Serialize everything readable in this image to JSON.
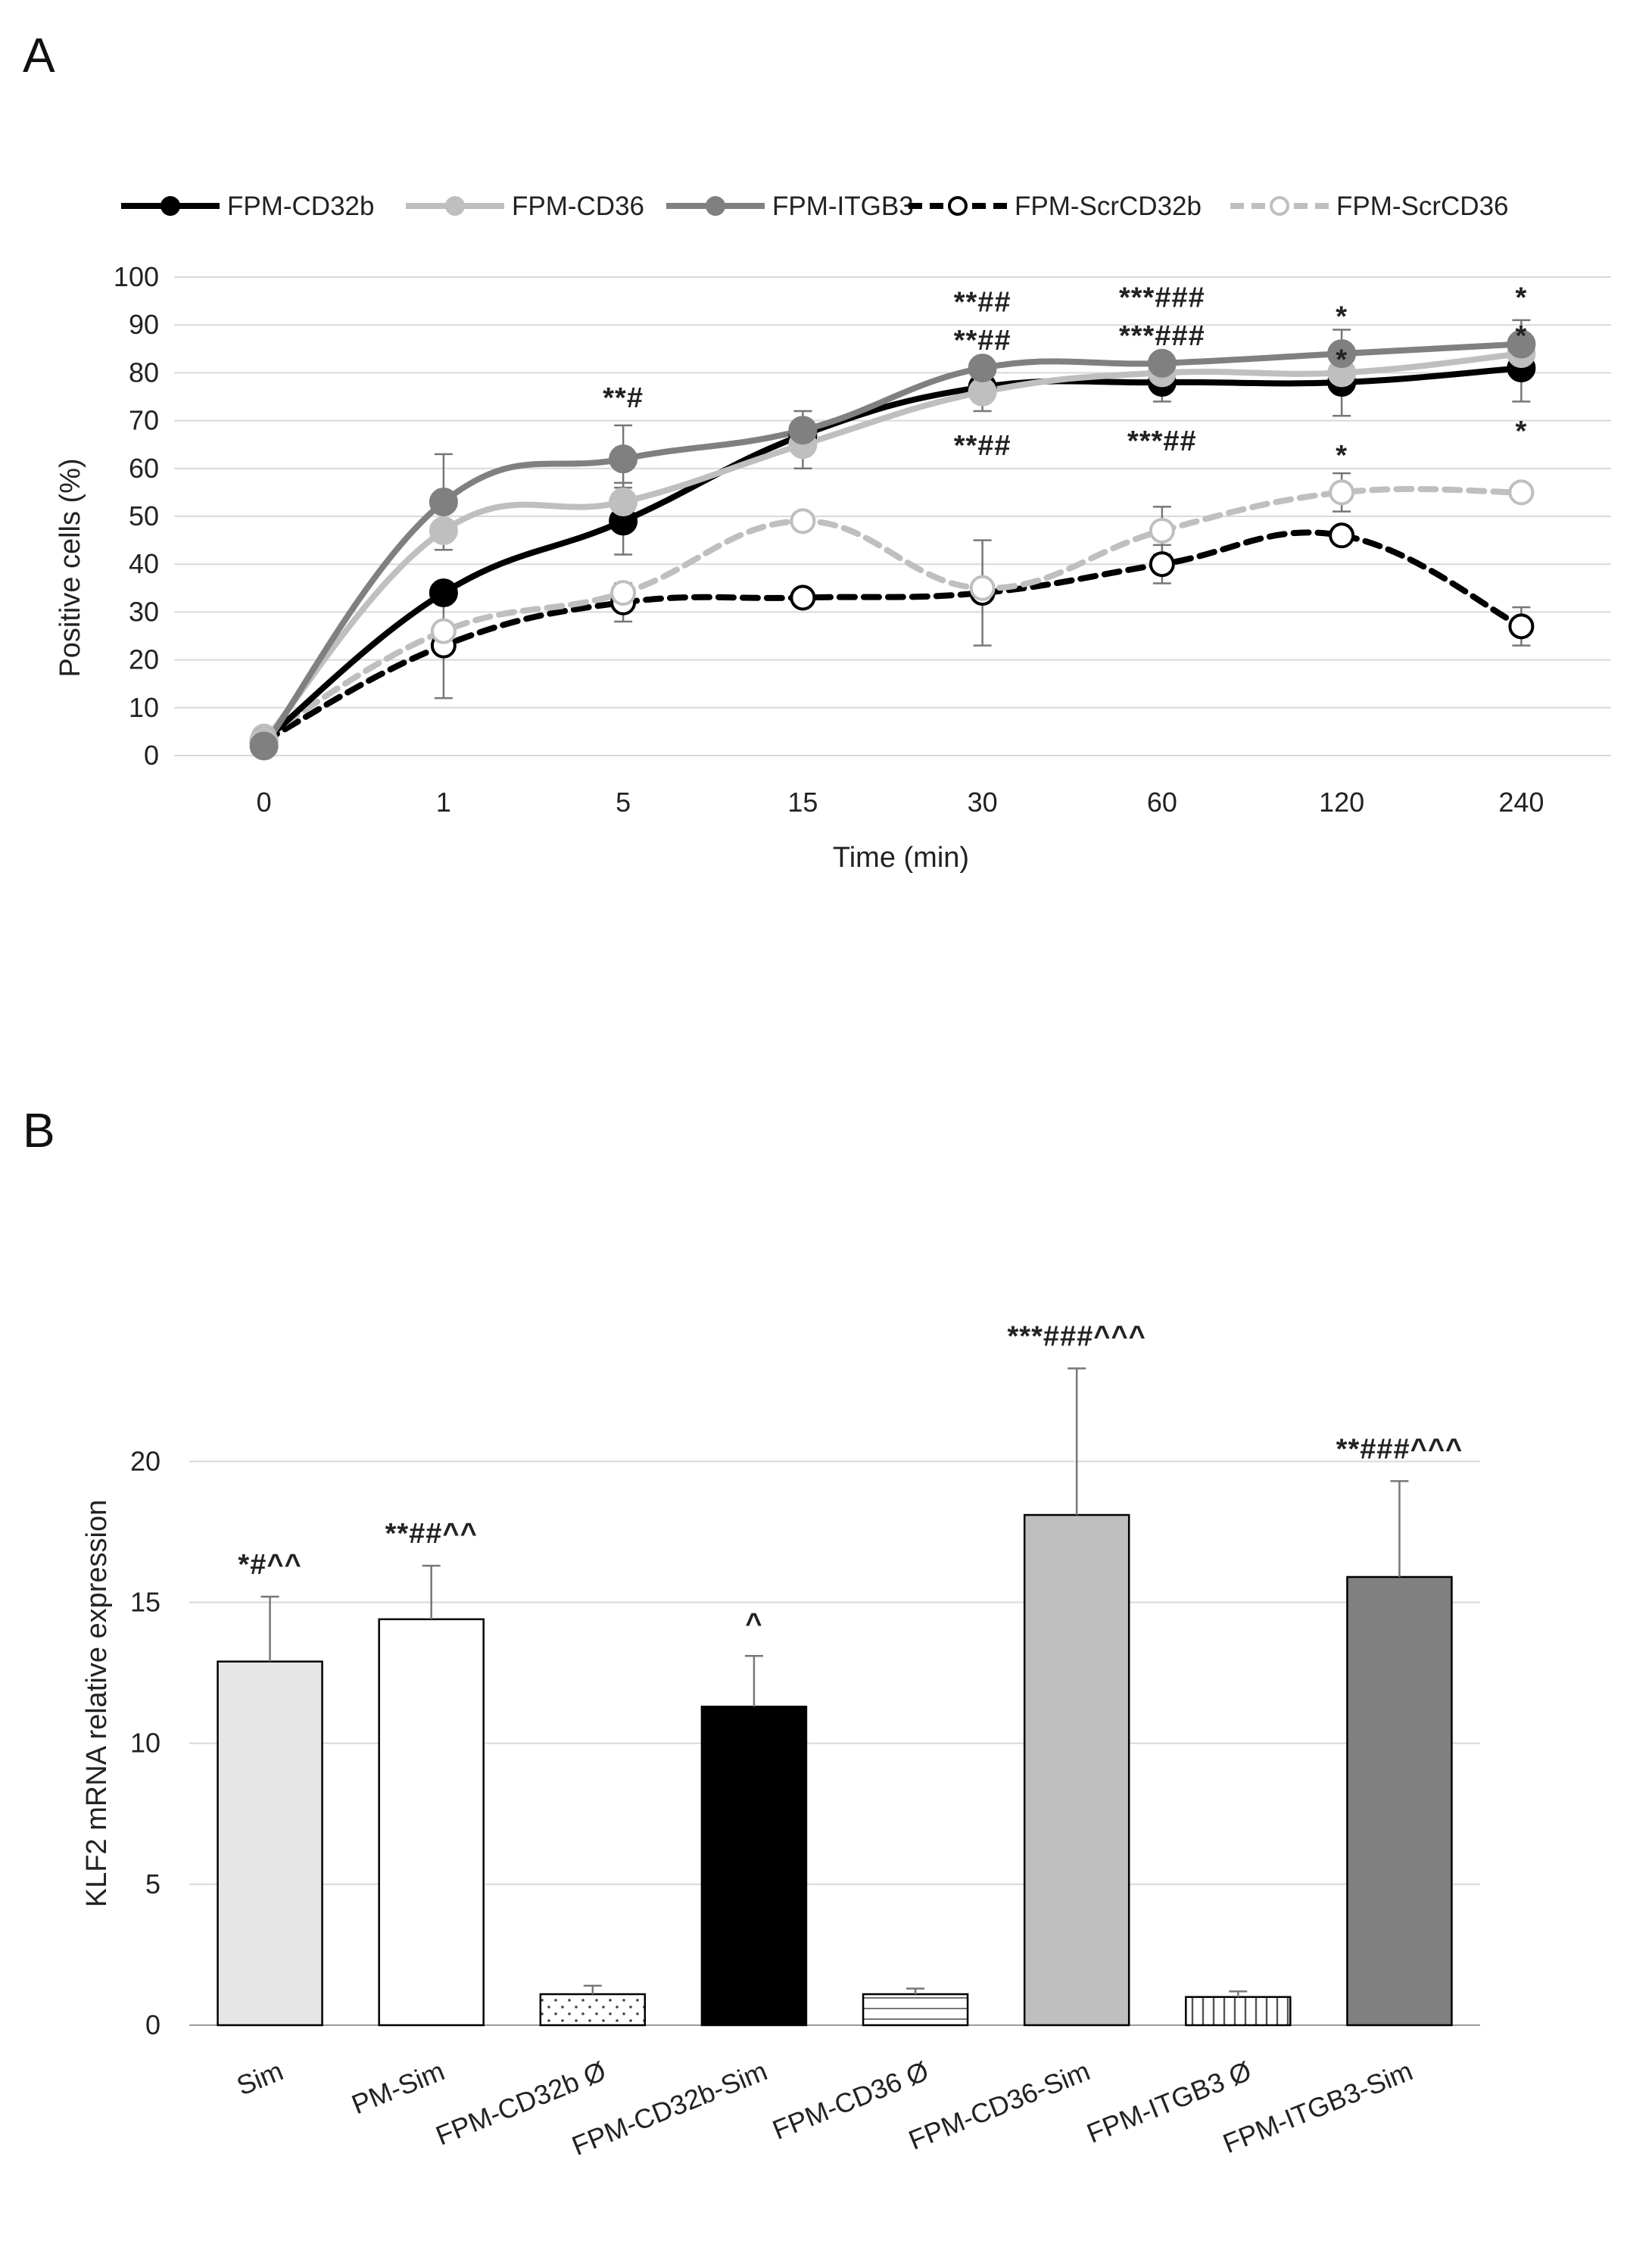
{
  "panels": {
    "a": {
      "letter": "A"
    },
    "b": {
      "letter": "B"
    }
  },
  "chart_data": [
    {
      "type": "line",
      "panel": "A",
      "xlabel": "Time (min)",
      "ylabel": "Positive cells (%)",
      "ylim": [
        0,
        100
      ],
      "yticks": [
        "0",
        "10",
        "20",
        "30",
        "40",
        "50",
        "60",
        "70",
        "80",
        "90",
        "100"
      ],
      "categories": [
        "0",
        "1",
        "5",
        "15",
        "30",
        "60",
        "120",
        "240"
      ],
      "grid": true,
      "legend_position": "top",
      "series": [
        {
          "name": "FPM-CD32b",
          "color": "#000000",
          "style": "solid",
          "marker": "filled",
          "values": [
            3,
            34,
            49,
            67,
            77,
            78,
            78,
            81
          ],
          "errors": [
            0,
            0,
            7,
            0,
            0,
            4,
            7,
            7
          ]
        },
        {
          "name": "FPM-CD36",
          "color": "#bfbfbf",
          "style": "solid",
          "marker": "filled",
          "values": [
            3,
            47,
            53,
            65,
            76,
            80,
            80,
            84
          ],
          "errors": [
            0,
            0,
            4,
            5,
            4,
            0,
            0,
            0
          ]
        },
        {
          "name": "FPM-ITGB3",
          "color": "#808080",
          "style": "solid",
          "marker": "filled",
          "values": [
            2,
            53,
            62,
            68,
            81,
            82,
            84,
            86
          ],
          "errors": [
            0,
            10,
            7,
            4,
            0,
            0,
            5,
            5
          ]
        },
        {
          "name": "FPM-ScrCD32b",
          "color": "#000000",
          "style": "dashed",
          "marker": "open",
          "values": [
            3,
            23,
            32,
            33,
            34,
            40,
            46,
            27
          ],
          "errors": [
            0,
            11,
            4,
            0,
            11,
            4,
            0,
            4
          ]
        },
        {
          "name": "FPM-ScrCD36",
          "color": "#bfbfbf",
          "style": "dashed",
          "marker": "open",
          "values": [
            4,
            26,
            34,
            49,
            35,
            47,
            55,
            55
          ],
          "errors": [
            0,
            0,
            0,
            0,
            0,
            5,
            4,
            0
          ]
        }
      ],
      "annotations": [
        {
          "category": "5",
          "text": "**#",
          "value": 75
        },
        {
          "category": "30",
          "text": "**##",
          "value": 95
        },
        {
          "category": "30",
          "text": "**##",
          "value": 87
        },
        {
          "category": "30",
          "text": "**##",
          "value": 65
        },
        {
          "category": "60",
          "text": "***###",
          "value": 96
        },
        {
          "category": "60",
          "text": "***###",
          "value": 88
        },
        {
          "category": "60",
          "text": "***##",
          "value": 66
        },
        {
          "category": "120",
          "text": "*",
          "value": 92
        },
        {
          "category": "120",
          "text": "*",
          "value": 83
        },
        {
          "category": "120",
          "text": "*",
          "value": 63
        },
        {
          "category": "240",
          "text": "*",
          "value": 96
        },
        {
          "category": "240",
          "text": "*",
          "value": 88
        },
        {
          "category": "240",
          "text": "*",
          "value": 68
        }
      ]
    },
    {
      "type": "bar",
      "panel": "B",
      "ylabel": "KLF2 mRNA relative expression",
      "ylim": [
        0,
        20
      ],
      "yticks": [
        "0",
        "5",
        "10",
        "15",
        "20"
      ],
      "grid": true,
      "categories": [
        "Sim",
        "PM-Sim",
        "FPM-CD32b Ø",
        "FPM-CD32b-Sim",
        "FPM-CD36 Ø",
        "FPM-CD36-Sim",
        "FPM-ITGB3 Ø",
        "FPM-ITGB3-Sim"
      ],
      "values": [
        12.9,
        14.4,
        1.1,
        11.3,
        1.1,
        18.1,
        1.0,
        15.9
      ],
      "errors": [
        2.3,
        1.9,
        0.3,
        1.8,
        0.2,
        5.2,
        0.2,
        3.4
      ],
      "fills": [
        "#e6e6e6",
        "#ffffff",
        "dots",
        "#000000",
        "hlines",
        "#bfbfbf",
        "vlines",
        "#808080"
      ],
      "annotations": [
        "*#^^",
        "**##^^",
        "",
        "^",
        "",
        "***###^^^",
        "",
        "**###^^^"
      ]
    }
  ]
}
